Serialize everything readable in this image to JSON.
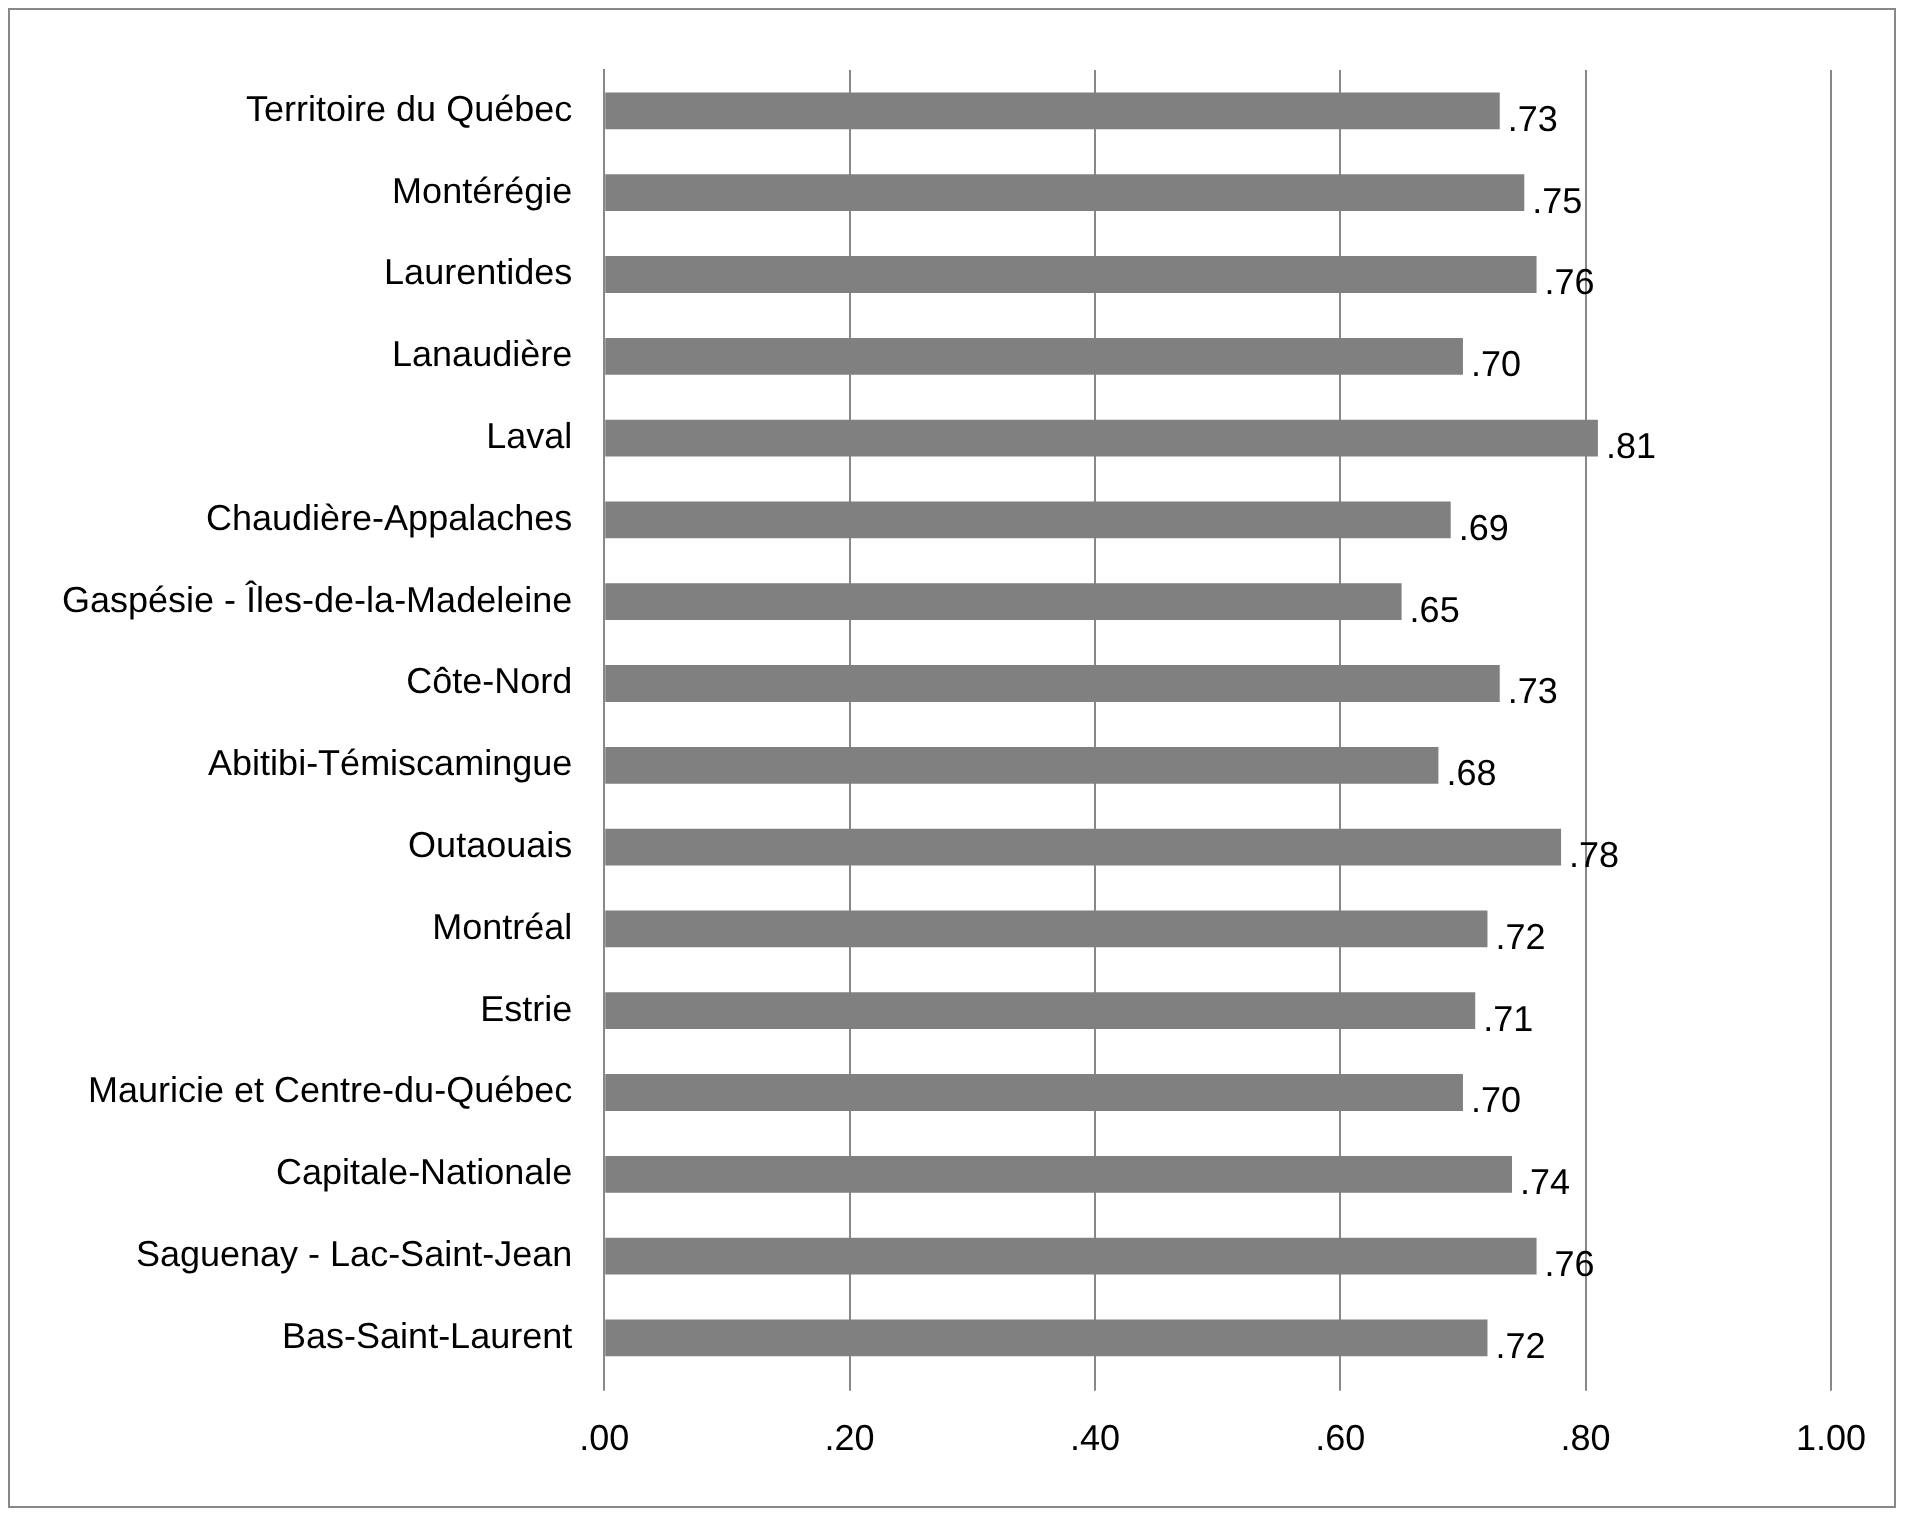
{
  "chart_data": {
    "type": "bar",
    "orientation": "horizontal",
    "categories": [
      "Territoire du Québec",
      "Montérégie",
      "Laurentides",
      "Lanaudière",
      "Laval",
      "Chaudière-Appalaches",
      "Gaspésie - Îles-de-la-Madeleine",
      "Côte-Nord",
      "Abitibi-Témiscamingue",
      "Outaouais",
      "Montréal",
      "Estrie",
      "Mauricie et Centre-du-Québec",
      "Capitale-Nationale",
      "Saguenay - Lac-Saint-Jean",
      "Bas-Saint-Laurent"
    ],
    "values": [
      0.73,
      0.75,
      0.76,
      0.7,
      0.81,
      0.69,
      0.65,
      0.73,
      0.68,
      0.78,
      0.72,
      0.71,
      0.7,
      0.74,
      0.76,
      0.72
    ],
    "value_labels": [
      ".73",
      ".75",
      ".76",
      ".70",
      ".81",
      ".69",
      ".65",
      ".73",
      ".68",
      ".78",
      ".72",
      ".71",
      ".70",
      ".74",
      ".76",
      ".72"
    ],
    "color": "#808080",
    "xlim": [
      0,
      1
    ],
    "xticks": [
      {
        "value": 0,
        "label": ".00"
      },
      {
        "value": 0.2,
        "label": ".20"
      },
      {
        "value": 0.4,
        "label": ".40"
      },
      {
        "value": 0.6,
        "label": ".60"
      },
      {
        "value": 0.8,
        "label": ".80"
      },
      {
        "value": 1,
        "label": "1.00"
      }
    ],
    "grid": "x",
    "legend": false
  }
}
